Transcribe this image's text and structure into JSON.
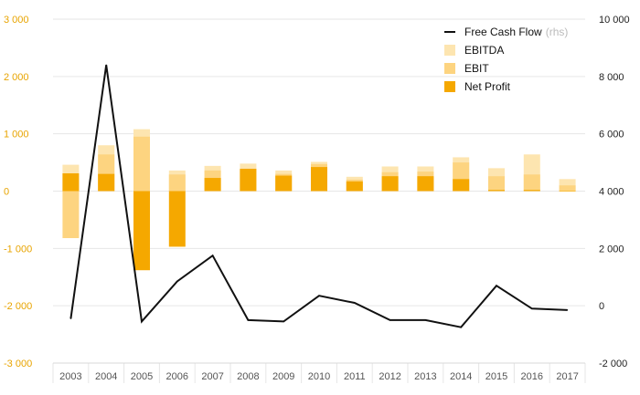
{
  "chart_data": {
    "type": "bar",
    "title": "",
    "xlabel": "",
    "ylabel": "",
    "categories": [
      "2003",
      "2004",
      "2005",
      "2006",
      "2007",
      "2008",
      "2009",
      "2010",
      "2011",
      "2012",
      "2013",
      "2014",
      "2015",
      "2016",
      "2017"
    ],
    "ylim": [
      -3000,
      3000
    ],
    "y2lim": [
      -2000,
      10000
    ],
    "yticks": [
      -3000,
      -2000,
      -1000,
      0,
      1000,
      2000,
      3000
    ],
    "yticklabels": [
      "-3 000",
      "-2 000",
      "-1 000",
      "0",
      "1 000",
      "2 000",
      "3 000"
    ],
    "y2ticks": [
      -2000,
      0,
      2000,
      4000,
      6000,
      8000,
      10000
    ],
    "y2ticklabels": [
      "-2 000",
      "0",
      "2 000",
      "4 000",
      "6 000",
      "8 000",
      "10 000"
    ],
    "grid": true,
    "legend_position": "top-right",
    "series": [
      {
        "name": "EBITDA",
        "kind": "bar",
        "axis": "left",
        "color": "#fde5b0",
        "values": [
          460,
          800,
          1080,
          360,
          440,
          480,
          360,
          510,
          250,
          430,
          430,
          590,
          400,
          640,
          210
        ]
      },
      {
        "name": "EBIT",
        "kind": "bar",
        "axis": "left",
        "color": "#fdd480",
        "values": [
          -820,
          640,
          950,
          290,
          360,
          370,
          300,
          470,
          200,
          330,
          340,
          500,
          260,
          290,
          100
        ]
      },
      {
        "name": "Net Profit",
        "kind": "bar",
        "axis": "left",
        "color": "#f5a800",
        "values": [
          310,
          300,
          -1380,
          -970,
          230,
          390,
          270,
          420,
          170,
          260,
          260,
          210,
          20,
          20,
          0
        ]
      },
      {
        "name": "Free Cash Flow",
        "kind": "line",
        "axis": "right",
        "color": "#111111",
        "values": [
          -450,
          8400,
          -550,
          850,
          1750,
          -500,
          -550,
          350,
          100,
          -500,
          -500,
          -750,
          700,
          -100,
          -150
        ]
      }
    ],
    "legend": [
      {
        "name": "Free Cash Flow",
        "note": "(rhs)",
        "marker": "line",
        "color": "#111111"
      },
      {
        "name": "EBITDA",
        "note": "",
        "marker": "box",
        "color": "#fde5b0"
      },
      {
        "name": "EBIT",
        "note": "",
        "marker": "box",
        "color": "#fdd480"
      },
      {
        "name": "Net Profit",
        "note": "",
        "marker": "box",
        "color": "#f5a800"
      }
    ]
  }
}
